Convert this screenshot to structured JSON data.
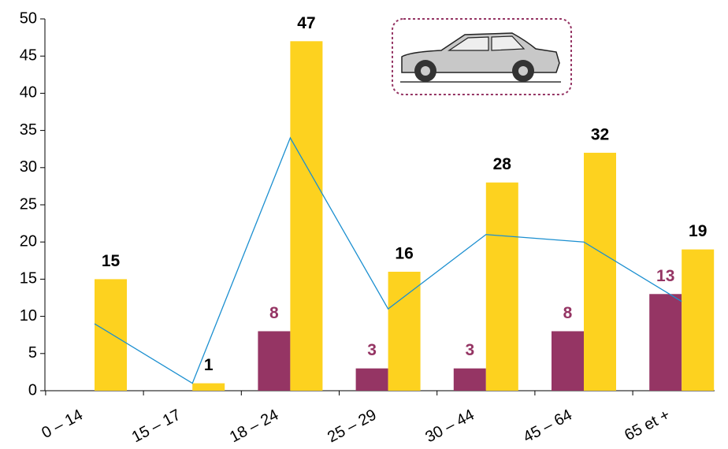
{
  "chart_data": {
    "type": "bar",
    "categories": [
      "0 – 14",
      "15 – 17",
      "18 – 24",
      "25 – 29",
      "30 – 44",
      "45 – 64",
      "65 et +"
    ],
    "series": [
      {
        "color": "#953564",
        "label_color": "#953564",
        "values": [
          null,
          null,
          8,
          3,
          3,
          8,
          13
        ]
      },
      {
        "color": "#fdd21f",
        "label_color": "#000000",
        "values": [
          15,
          1,
          47,
          16,
          28,
          32,
          19
        ]
      },
      {
        "type": "line",
        "color": "#1b8fd0",
        "values": [
          9,
          1,
          34,
          11,
          21,
          20,
          12
        ]
      }
    ],
    "ylim": [
      0,
      50
    ],
    "yticks": [
      0,
      5,
      10,
      15,
      20,
      25,
      30,
      35,
      40,
      45,
      50
    ]
  }
}
